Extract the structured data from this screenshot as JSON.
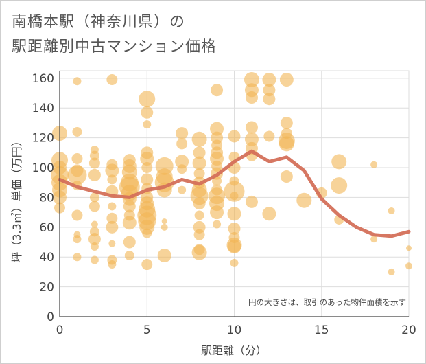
{
  "chart_data": {
    "type": "scatter",
    "title_line1": "南橋本駅（神奈川県）の",
    "title_line2": "駅距離別中古マンション価格",
    "xlabel": "駅距離（分）",
    "ylabel": "坪（3.3㎡）単価（万円）",
    "annotation": "円の大きさは、取引のあった物件面積を示す",
    "xlim": [
      0,
      20
    ],
    "ylim": [
      0,
      165
    ],
    "xticks": [
      0,
      5,
      10,
      15,
      20
    ],
    "yticks": [
      0,
      20,
      40,
      60,
      80,
      100,
      120,
      140,
      160
    ],
    "grid": true,
    "bubble_color": "#f2b555",
    "trend_color": "#d4705a",
    "series": [
      {
        "type": "bubble",
        "points": [
          [
            0,
            123,
            11
          ],
          [
            0,
            105,
            12
          ],
          [
            0,
            100,
            10
          ],
          [
            0,
            95,
            13
          ],
          [
            0,
            90,
            12
          ],
          [
            0,
            85,
            11
          ],
          [
            0,
            80,
            10
          ],
          [
            0,
            73,
            8
          ],
          [
            1,
            158,
            6
          ],
          [
            1,
            124,
            7
          ],
          [
            1,
            106,
            8
          ],
          [
            1,
            98,
            9
          ],
          [
            1,
            95,
            14
          ],
          [
            1,
            88,
            7
          ],
          [
            1,
            68,
            8
          ],
          [
            1,
            55,
            5
          ],
          [
            1,
            52,
            6
          ],
          [
            1,
            40,
            6
          ],
          [
            2,
            112,
            6
          ],
          [
            2,
            108,
            7
          ],
          [
            2,
            103,
            8
          ],
          [
            2,
            95,
            9
          ],
          [
            2,
            80,
            7
          ],
          [
            2,
            74,
            8
          ],
          [
            2,
            62,
            5
          ],
          [
            2,
            57,
            7
          ],
          [
            2,
            52,
            9
          ],
          [
            2,
            47,
            6
          ],
          [
            2,
            38,
            6
          ],
          [
            3,
            159,
            8
          ],
          [
            3,
            102,
            8
          ],
          [
            3,
            98,
            10
          ],
          [
            3,
            92,
            7
          ],
          [
            3,
            84,
            9
          ],
          [
            3,
            74,
            6
          ],
          [
            3,
            66,
            8
          ],
          [
            3,
            60,
            9
          ],
          [
            3,
            49,
            5
          ],
          [
            3,
            38,
            7
          ],
          [
            3,
            35,
            6
          ],
          [
            4,
            105,
            9
          ],
          [
            4,
            101,
            10
          ],
          [
            4,
            97,
            11
          ],
          [
            4,
            90,
            13
          ],
          [
            4,
            87,
            15
          ],
          [
            4,
            83,
            12
          ],
          [
            4,
            79,
            10
          ],
          [
            4,
            74,
            9
          ],
          [
            4,
            68,
            8
          ],
          [
            4,
            63,
            10
          ],
          [
            4,
            50,
            9
          ],
          [
            4,
            41,
            7
          ],
          [
            5,
            146,
            12
          ],
          [
            5,
            137,
            9
          ],
          [
            5,
            129,
            6
          ],
          [
            5,
            110,
            9
          ],
          [
            5,
            106,
            10
          ],
          [
            5,
            100,
            8
          ],
          [
            5,
            92,
            9
          ],
          [
            5,
            86,
            8
          ],
          [
            5,
            80,
            9
          ],
          [
            5,
            76,
            10
          ],
          [
            5,
            72,
            12
          ],
          [
            5,
            68,
            14
          ],
          [
            5,
            64,
            13
          ],
          [
            5,
            60,
            11
          ],
          [
            5,
            56,
            7
          ],
          [
            5,
            35,
            8
          ],
          [
            6,
            101,
            13
          ],
          [
            6,
            94,
            12
          ],
          [
            6,
            90,
            14
          ],
          [
            6,
            85,
            11
          ],
          [
            6,
            64,
            4
          ],
          [
            6,
            60,
            5
          ],
          [
            6,
            41,
            10
          ],
          [
            7,
            123,
            9
          ],
          [
            7,
            116,
            8
          ],
          [
            7,
            104,
            10
          ],
          [
            7,
            99,
            7
          ],
          [
            7,
            85,
            6
          ],
          [
            8,
            119,
            11
          ],
          [
            8,
            110,
            9
          ],
          [
            8,
            103,
            10
          ],
          [
            8,
            96,
            8
          ],
          [
            8,
            90,
            9
          ],
          [
            8,
            85,
            11
          ],
          [
            8,
            81,
            13
          ],
          [
            8,
            76,
            9
          ],
          [
            8,
            68,
            7
          ],
          [
            8,
            60,
            9
          ],
          [
            8,
            55,
            8
          ],
          [
            8,
            45,
            8
          ],
          [
            8,
            43,
            11
          ],
          [
            9,
            152,
            9
          ],
          [
            9,
            126,
            10
          ],
          [
            9,
            120,
            9
          ],
          [
            9,
            115,
            8
          ],
          [
            9,
            110,
            9
          ],
          [
            9,
            106,
            10
          ],
          [
            9,
            101,
            8
          ],
          [
            9,
            96,
            9
          ],
          [
            9,
            91,
            7
          ],
          [
            9,
            85,
            8
          ],
          [
            9,
            81,
            12
          ],
          [
            9,
            76,
            11
          ],
          [
            9,
            70,
            10
          ],
          [
            9,
            62,
            6
          ],
          [
            10,
            121,
            9
          ],
          [
            10,
            107,
            8
          ],
          [
            10,
            100,
            9
          ],
          [
            10,
            91,
            7
          ],
          [
            10,
            84,
            15
          ],
          [
            10,
            81,
            6
          ],
          [
            10,
            69,
            10
          ],
          [
            10,
            59,
            9
          ],
          [
            10,
            53,
            8
          ],
          [
            10,
            48,
            11
          ],
          [
            10,
            47,
            10
          ],
          [
            10,
            36,
            6
          ],
          [
            11,
            159,
            11
          ],
          [
            11,
            152,
            10
          ],
          [
            11,
            147,
            9
          ],
          [
            11,
            127,
            9
          ],
          [
            11,
            119,
            10
          ],
          [
            11,
            113,
            9
          ],
          [
            11,
            108,
            8
          ],
          [
            11,
            77,
            9
          ],
          [
            12,
            159,
            10
          ],
          [
            12,
            152,
            9
          ],
          [
            12,
            146,
            9
          ],
          [
            12,
            121,
            8
          ],
          [
            12,
            69,
            10
          ],
          [
            13,
            159,
            10
          ],
          [
            13,
            130,
            9
          ],
          [
            13,
            123,
            8
          ],
          [
            13,
            118,
            12
          ],
          [
            13,
            116,
            11
          ],
          [
            13,
            94,
            9
          ],
          [
            14,
            78,
            11
          ],
          [
            15,
            83,
            8
          ],
          [
            16,
            104,
            11
          ],
          [
            16,
            88,
            12
          ],
          [
            16,
            65,
            7
          ],
          [
            18,
            102,
            5
          ],
          [
            18,
            52,
            5
          ],
          [
            19,
            71,
            5
          ],
          [
            19,
            30,
            5
          ],
          [
            20,
            46,
            4
          ],
          [
            20,
            34,
            5
          ]
        ]
      },
      {
        "type": "line",
        "x": [
          0,
          1,
          2,
          3,
          4,
          5,
          6,
          7,
          8,
          9,
          10,
          11,
          12,
          13,
          14,
          15,
          16,
          17,
          18,
          19,
          20
        ],
        "y": [
          92,
          87,
          84,
          81,
          80,
          85,
          87,
          92,
          89,
          95,
          104,
          111,
          104,
          107,
          98,
          79,
          68,
          60,
          55,
          54,
          57
        ]
      }
    ]
  }
}
